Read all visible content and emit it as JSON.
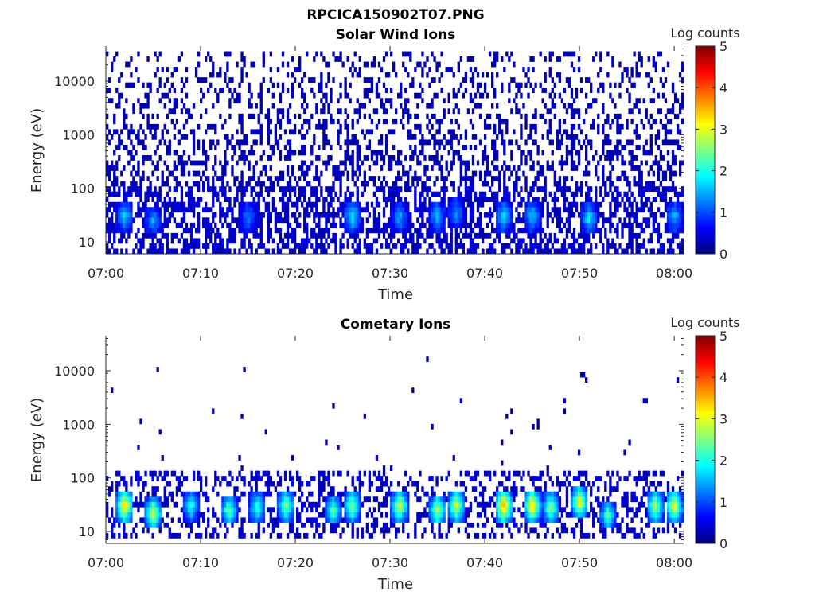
{
  "figure": {
    "title": "RPCICA150902T07.PNG"
  },
  "colormap": "jet",
  "colors": {
    "text": "#262626",
    "axis": "#262626",
    "background": "#ffffff"
  },
  "chart_data": [
    {
      "type": "heatmap",
      "title": "Solar Wind Ions",
      "xlabel": "Time",
      "ylabel": "Energy (eV)",
      "y_scale": "log",
      "x_range": [
        "07:00",
        "08:01"
      ],
      "ylim": [
        6,
        45000
      ],
      "x_ticks": [
        "07:00",
        "07:10",
        "07:20",
        "07:30",
        "07:40",
        "07:50",
        "08:00"
      ],
      "y_ticks": [
        10,
        100,
        1000,
        10000
      ],
      "y_tick_labels": [
        "10",
        "100",
        "1000",
        "10000"
      ],
      "colorbar": {
        "label": "Log counts",
        "min": 0,
        "max": 5,
        "ticks": [
          "0",
          "1",
          "2",
          "3",
          "4",
          "5"
        ]
      },
      "description_bands": {
        "sparse_high_energy_background": {
          "energy_range": [
            100,
            40000
          ],
          "log_counts": 0.2
        },
        "low_energy_band": {
          "energy_range": [
            6,
            100
          ],
          "log_counts_range": [
            0.2,
            2.3
          ]
        }
      },
      "bright_intervals": [
        {
          "time": "07:02",
          "energy": 30,
          "log_counts": 1.6
        },
        {
          "time": "07:05",
          "energy": 25,
          "log_counts": 1.4
        },
        {
          "time": "07:15",
          "energy": 30,
          "log_counts": 1.2
        },
        {
          "time": "07:26",
          "energy": 30,
          "log_counts": 1.8
        },
        {
          "time": "07:31",
          "energy": 30,
          "log_counts": 1.4
        },
        {
          "time": "07:35",
          "energy": 30,
          "log_counts": 1.5
        },
        {
          "time": "07:37",
          "energy": 35,
          "log_counts": 1.3
        },
        {
          "time": "07:42",
          "energy": 30,
          "log_counts": 1.7
        },
        {
          "time": "07:45",
          "energy": 30,
          "log_counts": 1.6
        },
        {
          "time": "07:51",
          "energy": 28,
          "log_counts": 1.7
        },
        {
          "time": "08:00",
          "energy": 30,
          "log_counts": 1.5
        }
      ]
    },
    {
      "type": "heatmap",
      "title": "Cometary Ions",
      "xlabel": "Time",
      "ylabel": "Energy (eV)",
      "y_scale": "log",
      "x_range": [
        "07:00",
        "08:01"
      ],
      "ylim": [
        6,
        45000
      ],
      "x_ticks": [
        "07:00",
        "07:10",
        "07:20",
        "07:30",
        "07:40",
        "07:50",
        "08:00"
      ],
      "y_ticks": [
        10,
        100,
        1000,
        10000
      ],
      "y_tick_labels": [
        "10",
        "100",
        "1000",
        "10000"
      ],
      "colorbar": {
        "label": "Log counts",
        "min": 0,
        "max": 5,
        "ticks": [
          "0",
          "1",
          "2",
          "3",
          "4",
          "5"
        ]
      },
      "description_bands": {
        "sparse_high_energy_background": {
          "energy_range": [
            100,
            30000
          ],
          "log_counts": 0.2
        },
        "low_energy_band": {
          "energy_range": [
            8,
            130
          ],
          "log_counts_range": [
            0.2,
            3.8
          ]
        }
      },
      "bright_intervals": [
        {
          "time": "07:02",
          "energy": 30,
          "log_counts": 3.5
        },
        {
          "time": "07:05",
          "energy": 22,
          "log_counts": 3.0
        },
        {
          "time": "07:09",
          "energy": 30,
          "log_counts": 2.0
        },
        {
          "time": "07:13",
          "energy": 25,
          "log_counts": 2.4
        },
        {
          "time": "07:16",
          "energy": 28,
          "log_counts": 2.2
        },
        {
          "time": "07:19",
          "energy": 30,
          "log_counts": 2.6
        },
        {
          "time": "07:24",
          "energy": 25,
          "log_counts": 2.3
        },
        {
          "time": "07:26",
          "energy": 30,
          "log_counts": 2.6
        },
        {
          "time": "07:31",
          "energy": 30,
          "log_counts": 3.0
        },
        {
          "time": "07:35",
          "energy": 25,
          "log_counts": 2.8
        },
        {
          "time": "07:37",
          "energy": 30,
          "log_counts": 3.0
        },
        {
          "time": "07:42",
          "energy": 30,
          "log_counts": 3.8
        },
        {
          "time": "07:45",
          "energy": 30,
          "log_counts": 3.5
        },
        {
          "time": "07:47",
          "energy": 28,
          "log_counts": 2.7
        },
        {
          "time": "07:50",
          "energy": 35,
          "log_counts": 3.2
        },
        {
          "time": "07:53",
          "energy": 20,
          "log_counts": 2.2
        },
        {
          "time": "07:58",
          "energy": 30,
          "log_counts": 2.8
        },
        {
          "time": "08:00",
          "energy": 30,
          "log_counts": 3.2
        }
      ]
    }
  ]
}
